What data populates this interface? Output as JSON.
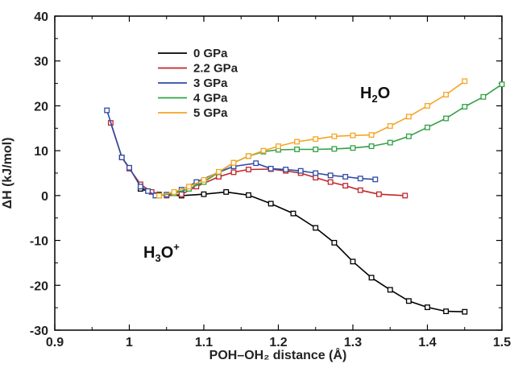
{
  "chart_data": {
    "type": "line",
    "xlabel": "POH–OH₂ distance (Å)",
    "ylabel": "ΔH (kJ/mol)",
    "xlim": [
      0.9,
      1.5
    ],
    "ylim": [
      -30,
      40
    ],
    "x_ticks": [
      "0.9",
      "1",
      "1.1",
      "1.2",
      "1.3",
      "1.4",
      "1.5"
    ],
    "y_ticks": [
      "-30",
      "-20",
      "-10",
      "0",
      "10",
      "20",
      "30",
      "40"
    ],
    "grid": false,
    "legend_position": "upper-center",
    "annotations": {
      "h3o_main": "H",
      "h3o_sub": "3",
      "h3o_o": "O",
      "h3o_sup": "+",
      "h2o_main": "H",
      "h2o_sub": "2",
      "h2o_o": "O"
    },
    "series": [
      {
        "name": "0 GPa",
        "color": "#000000",
        "x": [
          1.015,
          1.04,
          1.07,
          1.1,
          1.13,
          1.16,
          1.19,
          1.22,
          1.25,
          1.275,
          1.3,
          1.325,
          1.35,
          1.375,
          1.4,
          1.425,
          1.45
        ],
        "y": [
          1.5,
          0.2,
          0.0,
          0.3,
          0.8,
          0.1,
          -1.8,
          -4.0,
          -7.2,
          -10.5,
          -14.7,
          -18.3,
          -21.0,
          -23.5,
          -24.9,
          -25.8,
          -25.9
        ]
      },
      {
        "name": "2.2 GPa",
        "color": "#c0262b",
        "x": [
          0.975,
          0.99,
          1.0,
          1.015,
          1.03,
          1.05,
          1.07,
          1.09,
          1.12,
          1.14,
          1.16,
          1.19,
          1.21,
          1.23,
          1.25,
          1.27,
          1.29,
          1.31,
          1.335,
          1.37
        ],
        "y": [
          16.2,
          8.5,
          6.0,
          2.5,
          0.8,
          0.0,
          0.3,
          2.0,
          4.2,
          5.2,
          5.8,
          5.9,
          5.5,
          5.0,
          4.0,
          3.0,
          2.2,
          1.2,
          0.3,
          0.0
        ]
      },
      {
        "name": "3 GPa",
        "color": "#2e4aa5",
        "x": [
          0.97,
          0.99,
          1.0,
          1.015,
          1.025,
          1.035,
          1.05,
          1.07,
          1.09,
          1.12,
          1.14,
          1.17,
          1.19,
          1.21,
          1.23,
          1.25,
          1.27,
          1.29,
          1.31,
          1.33
        ],
        "y": [
          19.0,
          8.5,
          6.2,
          2.0,
          1.0,
          0.0,
          0.2,
          1.3,
          3.0,
          5.2,
          6.5,
          7.2,
          6.0,
          5.8,
          5.5,
          5.0,
          4.5,
          4.2,
          3.8,
          3.6
        ]
      },
      {
        "name": "4 GPa",
        "color": "#32a144",
        "x": [
          1.04,
          1.06,
          1.08,
          1.1,
          1.12,
          1.14,
          1.16,
          1.18,
          1.2,
          1.225,
          1.25,
          1.275,
          1.3,
          1.325,
          1.35,
          1.375,
          1.4,
          1.425,
          1.45,
          1.475,
          1.5
        ],
        "y": [
          0.0,
          0.5,
          1.5,
          3.0,
          5.2,
          7.3,
          8.8,
          9.8,
          10.2,
          10.3,
          10.3,
          10.4,
          10.6,
          11.0,
          11.8,
          13.2,
          15.2,
          17.2,
          19.8,
          22.0,
          24.8
        ]
      },
      {
        "name": "5 GPa",
        "color": "#f5a623",
        "x": [
          1.04,
          1.06,
          1.08,
          1.1,
          1.12,
          1.14,
          1.16,
          1.18,
          1.2,
          1.225,
          1.25,
          1.275,
          1.3,
          1.325,
          1.35,
          1.375,
          1.4,
          1.425,
          1.45
        ],
        "y": [
          0.0,
          0.8,
          2.0,
          3.5,
          5.3,
          7.3,
          8.8,
          10.0,
          11.0,
          12.0,
          12.6,
          13.2,
          13.4,
          13.5,
          15.5,
          17.6,
          20.0,
          22.5,
          25.5
        ]
      }
    ]
  }
}
